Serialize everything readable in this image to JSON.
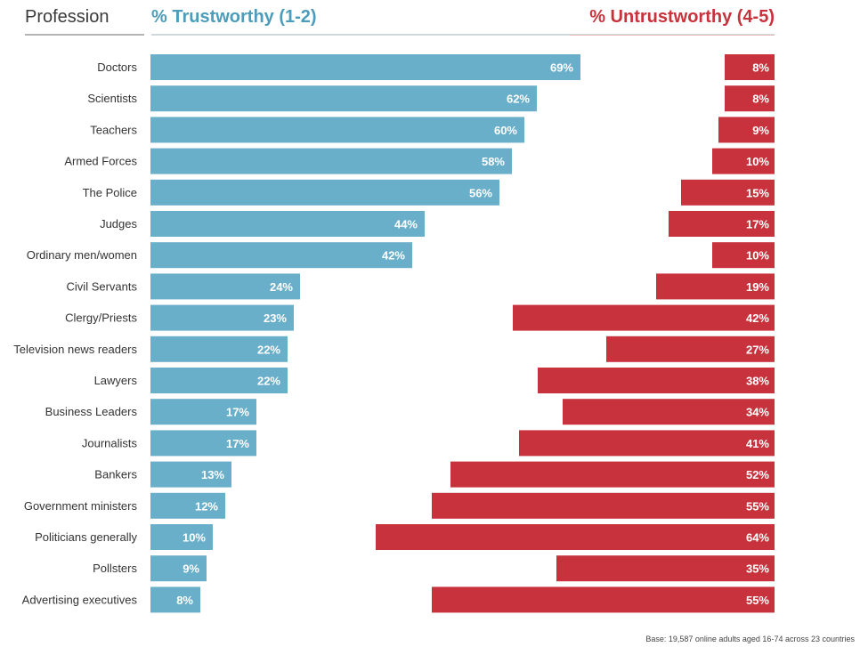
{
  "header": {
    "profession": "Profession",
    "trustworthy": "% Trustworthy (1-2)",
    "untrustworthy": "% Untrustworthy (4-5)"
  },
  "footer": {
    "base_note": "Base: 19,587 online adults aged 16-74 across 23 countries"
  },
  "colors": {
    "trustworthy": "#6aafca",
    "untrustworthy": "#c8323c"
  },
  "chart_data": {
    "type": "bar",
    "orientation": "horizontal",
    "categories": [
      "Doctors",
      "Scientists",
      "Teachers",
      "Armed Forces",
      "The Police",
      "Judges",
      "Ordinary men/women",
      "Civil Servants",
      "Clergy/Priests",
      "Television news readers",
      "Lawyers",
      "Business Leaders",
      "Journalists",
      "Bankers",
      "Government ministers",
      "Politicians generally",
      "Pollsters",
      "Advertising executives"
    ],
    "series": [
      {
        "name": "% Trustworthy (1-2)",
        "values": [
          69,
          62,
          60,
          58,
          56,
          44,
          42,
          24,
          23,
          22,
          22,
          17,
          17,
          13,
          12,
          10,
          9,
          8
        ],
        "labels": [
          "69%",
          "62%",
          "60%",
          "58%",
          "56%",
          "44%",
          "42%",
          "24%",
          "23%",
          "22%",
          "22%",
          "17%",
          "17%",
          "13%",
          "12%",
          "10%",
          "9%",
          "8%"
        ]
      },
      {
        "name": "% Untrustworthy (4-5)",
        "values": [
          8,
          8,
          9,
          10,
          15,
          17,
          10,
          19,
          42,
          27,
          38,
          34,
          41,
          52,
          55,
          64,
          35,
          55
        ],
        "labels": [
          "8%",
          "8%",
          "9%",
          "10%",
          "15%",
          "17%",
          "10%",
          "19%",
          "42%",
          "27%",
          "38%",
          "34%",
          "41%",
          "52%",
          "55%",
          "64%",
          "35%",
          "55%"
        ]
      }
    ],
    "grid": false,
    "legend": "none"
  }
}
